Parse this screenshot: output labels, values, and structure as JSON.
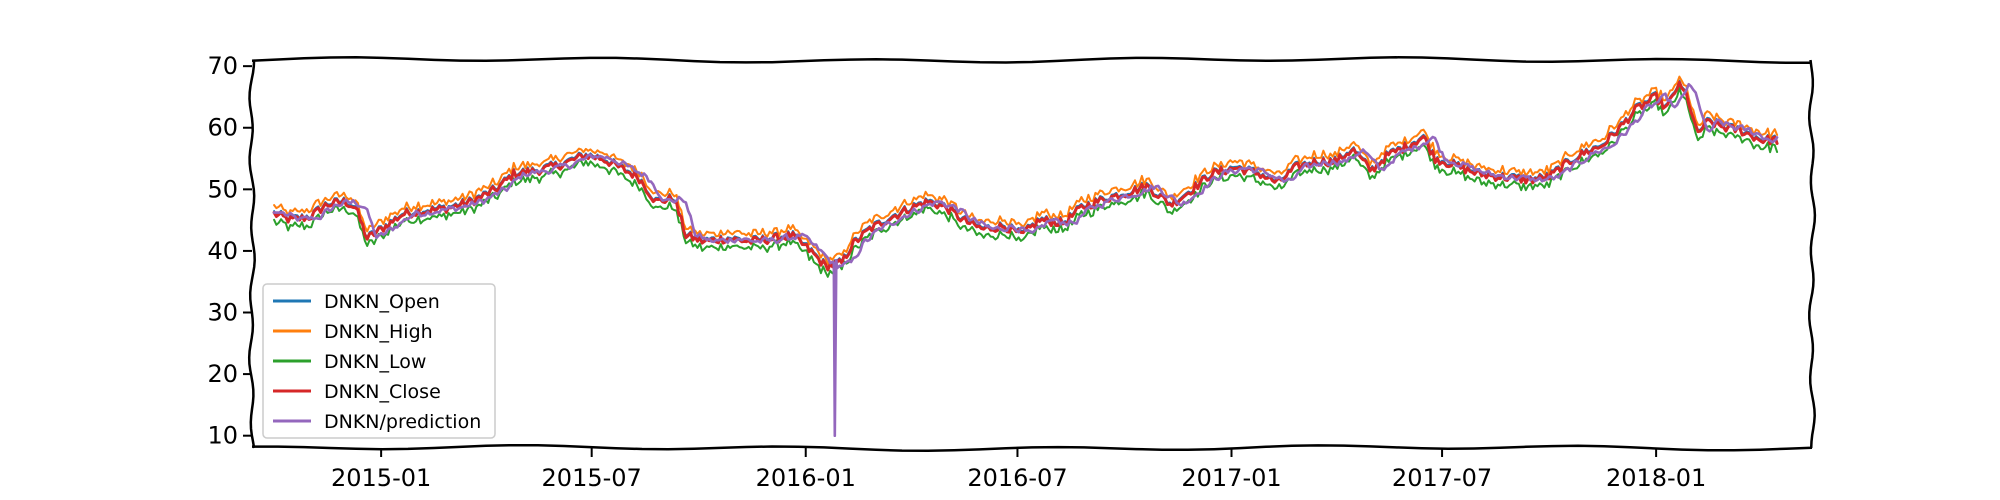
{
  "chart_data": {
    "type": "line",
    "title": "",
    "xlabel": "",
    "ylabel": "",
    "x_start": "2014-10-01",
    "x_end": "2018-04-15",
    "xlim": [
      "2014-09-12",
      "2018-05-15"
    ],
    "ylim": [
      8,
      71
    ],
    "yticks": [
      10,
      20,
      30,
      40,
      50,
      60,
      70
    ],
    "xticks": [
      {
        "date": "2015-01-01",
        "label": "2015-01"
      },
      {
        "date": "2015-07-01",
        "label": "2015-07"
      },
      {
        "date": "2016-01-01",
        "label": "2016-01"
      },
      {
        "date": "2016-07-01",
        "label": "2016-07"
      },
      {
        "date": "2017-01-01",
        "label": "2017-01"
      },
      {
        "date": "2017-07-01",
        "label": "2017-07"
      },
      {
        "date": "2018-01-01",
        "label": "2018-01"
      }
    ],
    "grid": false,
    "legend_position": "lower-left",
    "series": [
      {
        "name": "DNKN_Open",
        "color": "#1f77b4"
      },
      {
        "name": "DNKN_High",
        "color": "#ff7f0e"
      },
      {
        "name": "DNKN_Low",
        "color": "#2ca02c"
      },
      {
        "name": "DNKN_Close",
        "color": "#d62728"
      },
      {
        "name": "DNKN/prediction",
        "color": "#9467bd"
      }
    ],
    "close_anchors": [
      [
        "2014-10-01",
        46.0
      ],
      [
        "2014-10-15",
        45.0
      ],
      [
        "2014-11-01",
        45.5
      ],
      [
        "2014-11-15",
        47.5
      ],
      [
        "2014-12-01",
        48.0
      ],
      [
        "2014-12-10",
        47.0
      ],
      [
        "2014-12-20",
        42.0
      ],
      [
        "2015-01-05",
        44.0
      ],
      [
        "2015-01-20",
        46.0
      ],
      [
        "2015-02-10",
        46.5
      ],
      [
        "2015-03-01",
        47.0
      ],
      [
        "2015-03-20",
        48.0
      ],
      [
        "2015-04-10",
        50.0
      ],
      [
        "2015-04-25",
        52.5
      ],
      [
        "2015-05-15",
        53.0
      ],
      [
        "2015-06-05",
        54.0
      ],
      [
        "2015-06-25",
        55.5
      ],
      [
        "2015-07-10",
        55.0
      ],
      [
        "2015-07-25",
        53.5
      ],
      [
        "2015-08-10",
        52.0
      ],
      [
        "2015-08-25",
        48.0
      ],
      [
        "2015-09-10",
        48.5
      ],
      [
        "2015-09-20",
        42.5
      ],
      [
        "2015-10-05",
        41.5
      ],
      [
        "2015-10-25",
        42.0
      ],
      [
        "2015-11-15",
        41.5
      ],
      [
        "2015-12-05",
        42.0
      ],
      [
        "2015-12-20",
        42.5
      ],
      [
        "2016-01-05",
        40.0
      ],
      [
        "2016-01-18",
        37.5
      ],
      [
        "2016-02-01",
        38.0
      ],
      [
        "2016-02-10",
        41.0
      ],
      [
        "2016-02-25",
        43.5
      ],
      [
        "2016-03-15",
        45.5
      ],
      [
        "2016-04-01",
        47.0
      ],
      [
        "2016-04-15",
        48.0
      ],
      [
        "2016-05-01",
        47.0
      ],
      [
        "2016-05-15",
        45.0
      ],
      [
        "2016-06-01",
        43.5
      ],
      [
        "2016-06-20",
        44.0
      ],
      [
        "2016-07-05",
        42.5
      ],
      [
        "2016-07-20",
        45.0
      ],
      [
        "2016-08-10",
        44.5
      ],
      [
        "2016-08-25",
        47.0
      ],
      [
        "2016-09-15",
        48.5
      ],
      [
        "2016-10-05",
        49.5
      ],
      [
        "2016-10-20",
        50.5
      ],
      [
        "2016-11-10",
        47.5
      ],
      [
        "2016-11-25",
        49.5
      ],
      [
        "2016-12-15",
        52.5
      ],
      [
        "2017-01-05",
        53.5
      ],
      [
        "2017-01-25",
        52.5
      ],
      [
        "2017-02-10",
        51.0
      ],
      [
        "2017-02-25",
        53.5
      ],
      [
        "2017-03-15",
        54.5
      ],
      [
        "2017-04-01",
        54.5
      ],
      [
        "2017-04-15",
        56.5
      ],
      [
        "2017-05-01",
        53.0
      ],
      [
        "2017-05-15",
        55.5
      ],
      [
        "2017-06-01",
        57.0
      ],
      [
        "2017-06-15",
        58.5
      ],
      [
        "2017-06-25",
        55.0
      ],
      [
        "2017-07-10",
        54.0
      ],
      [
        "2017-08-01",
        52.5
      ],
      [
        "2017-08-20",
        52.0
      ],
      [
        "2017-09-15",
        51.5
      ],
      [
        "2017-10-01",
        52.0
      ],
      [
        "2017-10-15",
        54.0
      ],
      [
        "2017-11-01",
        56.0
      ],
      [
        "2017-11-15",
        57.0
      ],
      [
        "2017-12-01",
        60.0
      ],
      [
        "2017-12-15",
        63.0
      ],
      [
        "2018-01-01",
        65.0
      ],
      [
        "2018-01-10",
        63.0
      ],
      [
        "2018-01-20",
        67.0
      ],
      [
        "2018-01-28",
        65.0
      ],
      [
        "2018-02-05",
        59.0
      ],
      [
        "2018-02-15",
        61.0
      ],
      [
        "2018-03-01",
        60.0
      ],
      [
        "2018-03-15",
        59.5
      ],
      [
        "2018-04-01",
        58.0
      ],
      [
        "2018-04-15",
        58.0
      ]
    ],
    "prediction_anomaly": {
      "date": "2016-01-26",
      "value": 10.0
    }
  }
}
